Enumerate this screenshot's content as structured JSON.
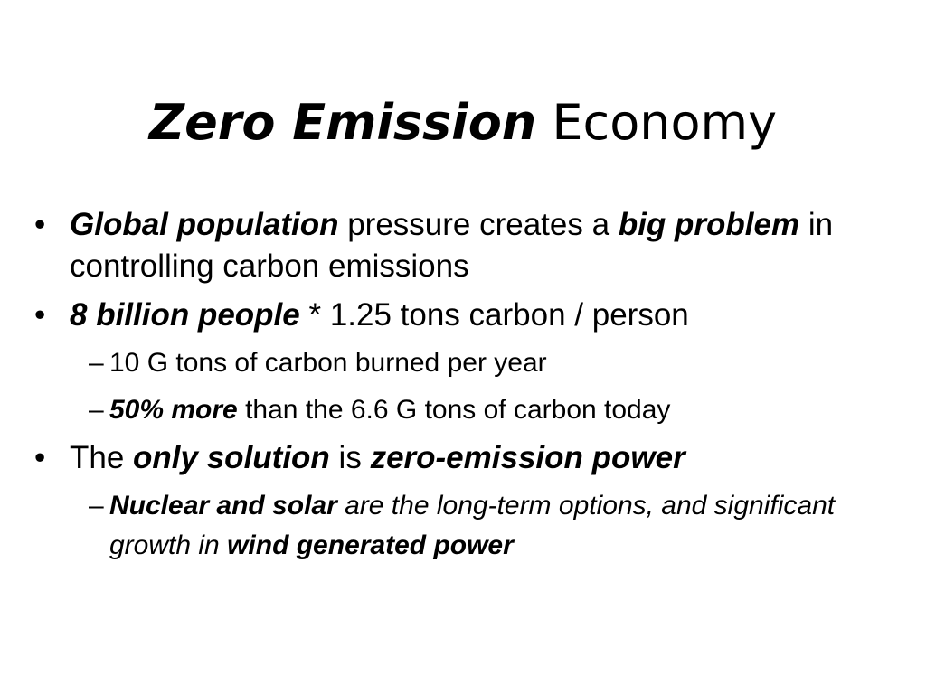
{
  "title": [
    "Zero Emission",
    "Economy"
  ],
  "bullets": [
    {
      "runs": [
        "Global population",
        "pressure creates a",
        "big problem",
        "in controlling carbon emissions"
      ]
    },
    {
      "runs": [
        "8 billion people",
        "* 1.25 tons carbon / person"
      ],
      "subs": [
        {
          "runs": [
            "10 G tons of carbon burned per year"
          ]
        },
        {
          "runs": [
            "50% more",
            "than the 6.6 G tons of carbon today"
          ]
        }
      ]
    },
    {
      "runs": [
        "The",
        "only solution",
        "is",
        "zero-emission power"
      ],
      "subs": [
        {
          "runs": [
            "Nuclear and solar",
            "are the long-term options, and significant growth in",
            "wind generated power"
          ]
        }
      ]
    }
  ]
}
